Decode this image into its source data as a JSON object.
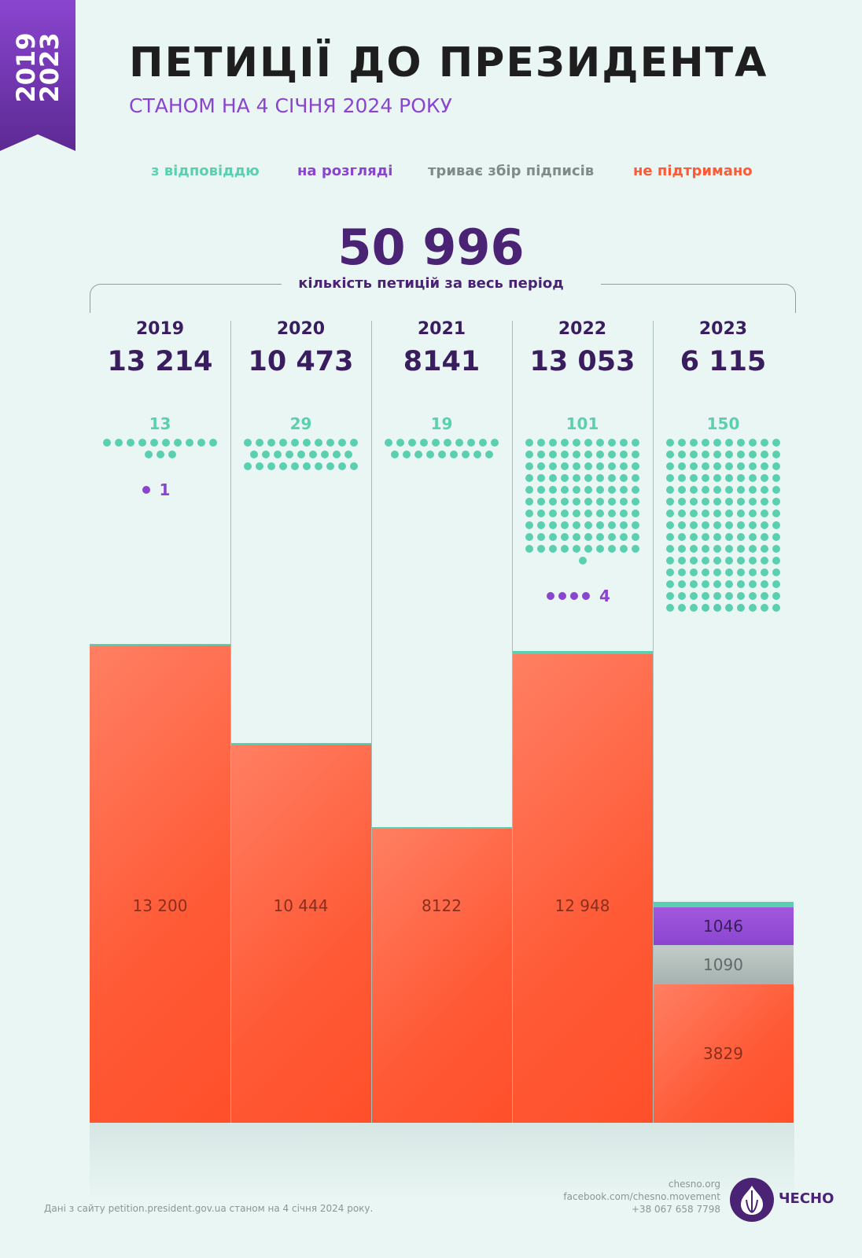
{
  "ribbon": {
    "line1": "2019",
    "line2": "2023"
  },
  "title": "ПЕТИЦІЇ ДО ПРЕЗИДЕНТА",
  "subtitle": "СТАНОМ НА 4 СІЧНЯ 2024 РОКУ",
  "legend": [
    {
      "label": "з відповіддю",
      "color": "#5bd0b0"
    },
    {
      "label": "на розгляді",
      "color": "#8a45cf"
    },
    {
      "label": "триває збір підписів",
      "color": "#7f8b88"
    },
    {
      "label": "не підтримано",
      "color": "#ff5a36"
    }
  ],
  "total": "50 996",
  "total_label": "кількість петицій за весь період",
  "chart_data": {
    "type": "bar",
    "categories": [
      "2019",
      "2020",
      "2021",
      "2022",
      "2023"
    ],
    "totals": [
      "13 214",
      "10 473",
      "8141",
      "13 053",
      "6 115"
    ],
    "total_values": [
      13214,
      10473,
      8141,
      13053,
      6115
    ],
    "series": [
      {
        "name": "з відповіддю",
        "values": [
          13,
          29,
          19,
          101,
          150
        ],
        "color": "#5bd0b0"
      },
      {
        "name": "на розгляді",
        "values": [
          1,
          0,
          0,
          4,
          1046
        ],
        "color": "#8a45cf"
      },
      {
        "name": "триває збір підписів",
        "values": [
          0,
          0,
          0,
          0,
          1090
        ],
        "color": "#a8b6b3"
      },
      {
        "name": "не підтримано",
        "values": [
          13200,
          10444,
          8122,
          12948,
          3829
        ],
        "color": "#ff5a36"
      }
    ],
    "bar_labels": {
      "unsupported": [
        "13 200",
        "10 444",
        "8122",
        "12 948",
        "3829"
      ],
      "review": [
        "",
        "",
        "",
        "",
        "1046"
      ],
      "collecting": [
        "",
        "",
        "",
        "",
        "1090"
      ]
    },
    "answered_labels": [
      "13",
      "29",
      "19",
      "101",
      "150"
    ],
    "review_dot_labels": [
      "1",
      "",
      "",
      "4",
      ""
    ],
    "ylim": [
      0,
      13214
    ]
  },
  "footer": {
    "note": "Дані з сайту petition.president.gov.ua станом на 4 січня 2024 року.",
    "site": "chesno.org",
    "facebook": "facebook.com/chesno.movement",
    "phone": "+38 067 658 7798",
    "logo": "ЧЕСНО"
  }
}
